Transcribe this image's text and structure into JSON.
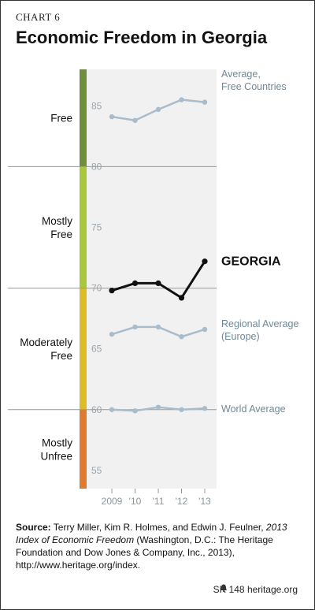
{
  "header": {
    "chart_number": "CHART 6",
    "title": "Economic Freedom in Georgia"
  },
  "chart_data": {
    "type": "line",
    "title": "Economic Freedom in Georgia",
    "xlabel": "",
    "ylabel": "",
    "categories": [
      "2009",
      "'10",
      "'11",
      "'12",
      "'13"
    ],
    "ylim": [
      53.5,
      88
    ],
    "y_ticks": [
      55,
      60,
      65,
      70,
      75,
      80,
      85
    ],
    "grid": false,
    "bands": [
      {
        "label_lines": [
          "Free"
        ],
        "from": 80,
        "to": 88,
        "color": "#6f8f3c"
      },
      {
        "label_lines": [
          "Mostly",
          "Free"
        ],
        "from": 70,
        "to": 80,
        "color": "#a9c63c"
      },
      {
        "label_lines": [
          "Moderately",
          "Free"
        ],
        "from": 60,
        "to": 70,
        "color": "#dcbd27"
      },
      {
        "label_lines": [
          "Mostly",
          "Unfree"
        ],
        "from": 53.5,
        "to": 60,
        "color": "#df7a2e"
      }
    ],
    "series": [
      {
        "name": "Average, Free Countries",
        "label_lines": [
          "Average,",
          "Free Countries"
        ],
        "values": [
          84.1,
          83.8,
          84.7,
          85.5,
          85.3
        ],
        "color": "#a8bccb",
        "emphasis": false
      },
      {
        "name": "GEORGIA",
        "label_lines": [
          "GEORGIA"
        ],
        "values": [
          69.8,
          70.4,
          70.4,
          69.2,
          72.2
        ],
        "color": "#111111",
        "emphasis": true
      },
      {
        "name": "Regional Average (Europe)",
        "label_lines": [
          "Regional Average",
          "(Europe)"
        ],
        "values": [
          66.2,
          66.8,
          66.8,
          66.0,
          66.6
        ],
        "color": "#a8bccb",
        "emphasis": false
      },
      {
        "name": "World Average",
        "label_lines": [
          "World Average"
        ],
        "values": [
          60.0,
          59.9,
          60.2,
          60.0,
          60.1
        ],
        "color": "#a8bccb",
        "emphasis": false
      }
    ]
  },
  "source": {
    "label": "Source:",
    "text_1": " Terry Miller, Kim R. Holmes, and Edwin J. Feulner, ",
    "italic": "2013 Index of Economic Freedom",
    "text_2": " (Washington, D.C.: The Heritage Foundation and Dow Jones & Company, Inc., 2013), http://www.heritage.org/index."
  },
  "footer": {
    "report_id": "SR 148",
    "site": "heritage.org"
  }
}
